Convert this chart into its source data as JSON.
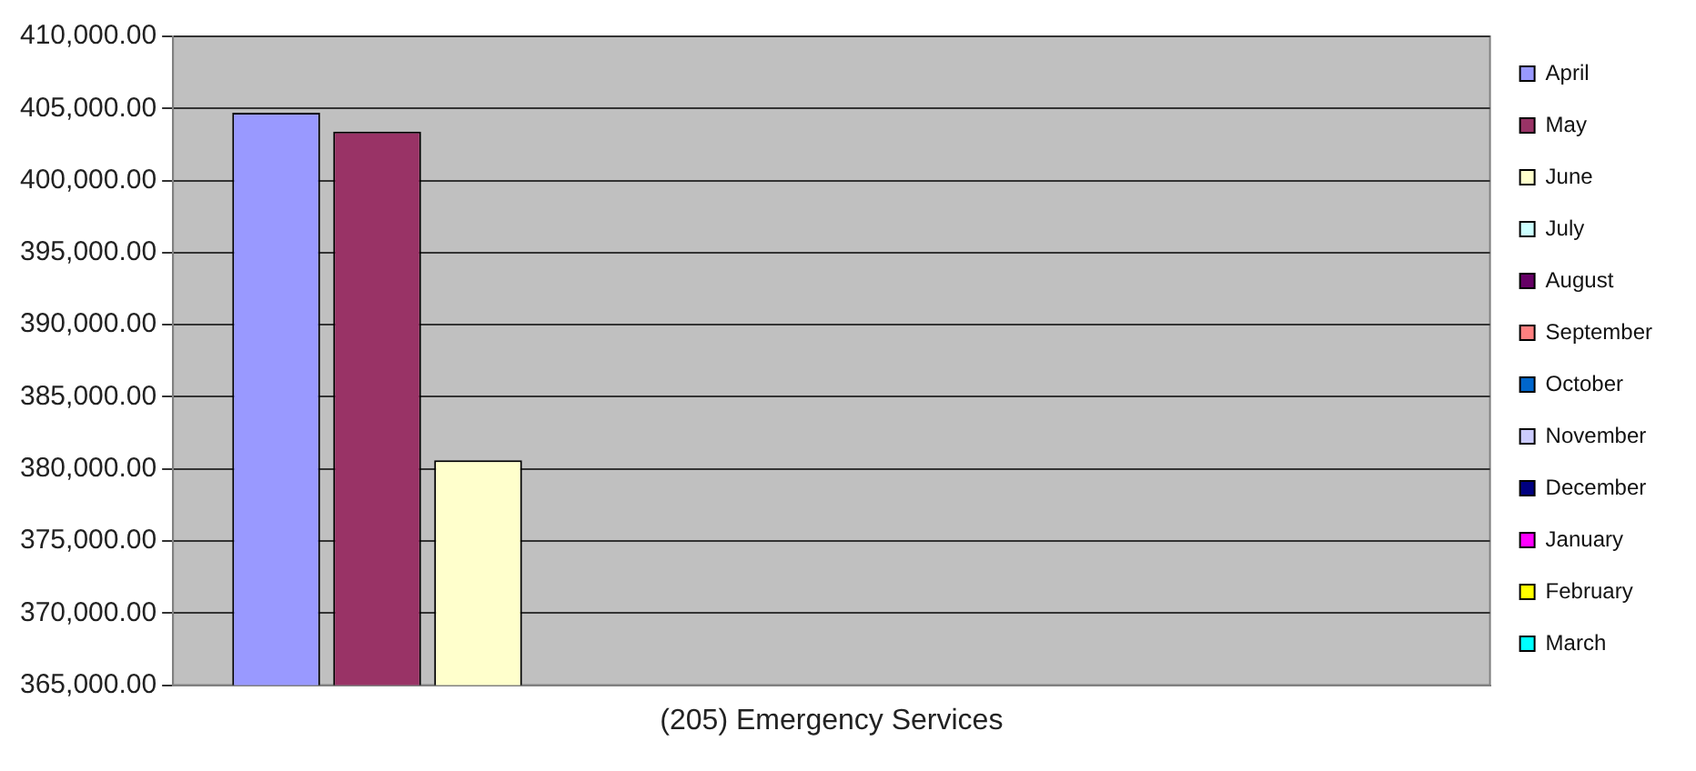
{
  "chart_data": {
    "type": "bar",
    "categories": [
      "(205) Emergency Services"
    ],
    "series": [
      {
        "name": "April",
        "color": "#9999ff",
        "values": [
          404700
        ]
      },
      {
        "name": "May",
        "color": "#993366",
        "values": [
          403400
        ]
      },
      {
        "name": "June",
        "color": "#ffffcc",
        "values": [
          380600
        ]
      },
      {
        "name": "July",
        "color": "#ccffff",
        "values": [
          null
        ]
      },
      {
        "name": "August",
        "color": "#660066",
        "values": [
          null
        ]
      },
      {
        "name": "September",
        "color": "#ff8080",
        "values": [
          null
        ]
      },
      {
        "name": "October",
        "color": "#0066cc",
        "values": [
          null
        ]
      },
      {
        "name": "November",
        "color": "#ccccff",
        "values": [
          null
        ]
      },
      {
        "name": "December",
        "color": "#000080",
        "values": [
          null
        ]
      },
      {
        "name": "January",
        "color": "#ff00ff",
        "values": [
          null
        ]
      },
      {
        "name": "February",
        "color": "#ffff00",
        "values": [
          null
        ]
      },
      {
        "name": "March",
        "color": "#00ffff",
        "values": [
          null
        ]
      }
    ],
    "ylim": [
      365000,
      410000
    ],
    "yticks": [
      {
        "value": 365000,
        "label": "365,000.00"
      },
      {
        "value": 370000,
        "label": "370,000.00"
      },
      {
        "value": 375000,
        "label": "375,000.00"
      },
      {
        "value": 380000,
        "label": "380,000.00"
      },
      {
        "value": 385000,
        "label": "385,000.00"
      },
      {
        "value": 390000,
        "label": "390,000.00"
      },
      {
        "value": 395000,
        "label": "395,000.00"
      },
      {
        "value": 400000,
        "label": "400,000.00"
      },
      {
        "value": 405000,
        "label": "405,000.00"
      },
      {
        "value": 410000,
        "label": "410,000.00"
      }
    ],
    "grid": "y",
    "legend": "right"
  }
}
